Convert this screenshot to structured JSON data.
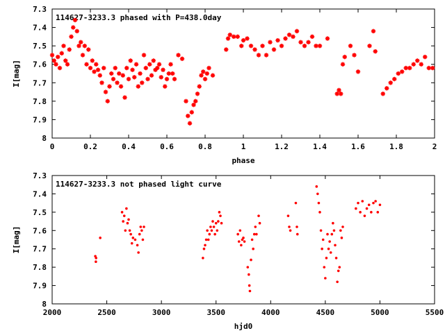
{
  "chart_data": [
    {
      "type": "scatter",
      "title": "114627-3233.3 phased with P=438.0day",
      "xlabel": "phase",
      "ylabel": "I[mag]",
      "xlim": [
        0,
        2
      ],
      "ylim": [
        7.3,
        8
      ],
      "y_inverted": true,
      "x_ticks": [
        "0",
        "0.2",
        "0.4",
        "0.6",
        "0.8",
        "1",
        "1.2",
        "1.4",
        "1.6",
        "1.8",
        "2"
      ],
      "y_ticks": [
        "7.3",
        "7.4",
        "7.5",
        "7.6",
        "7.7",
        "7.8",
        "7.9",
        "8"
      ],
      "marker_color": "#ff0000",
      "marker": "star",
      "series": [
        {
          "x": [
            0.0,
            0.01,
            0.02,
            0.03,
            0.04,
            0.05,
            0.06,
            0.07,
            0.08,
            0.09,
            0.1,
            0.11,
            0.12,
            0.13,
            0.14,
            0.15,
            0.16,
            0.17,
            0.18,
            0.19,
            0.2,
            0.21,
            0.22,
            0.23,
            0.24,
            0.25,
            0.26,
            0.27,
            0.28,
            0.29,
            0.3,
            0.31,
            0.32,
            0.33,
            0.34,
            0.35,
            0.36,
            0.37,
            0.38,
            0.39,
            0.4,
            0.41,
            0.42,
            0.43,
            0.44,
            0.45,
            0.46,
            0.47,
            0.48,
            0.49,
            0.5,
            0.51,
            0.52,
            0.53,
            0.54,
            0.55,
            0.56,
            0.57,
            0.58,
            0.59,
            0.6,
            0.61,
            0.62,
            0.63,
            0.64,
            0.66,
            0.68,
            0.7,
            0.71,
            0.72,
            0.73,
            0.74,
            0.75,
            0.76,
            0.77,
            0.78,
            0.79,
            0.8,
            0.81,
            0.82,
            0.84,
            0.91,
            0.92,
            0.93,
            0.95,
            0.97,
            0.99,
            1.0,
            1.02,
            1.04,
            1.06,
            1.08,
            1.1,
            1.12,
            1.14,
            1.16,
            1.18,
            1.2,
            1.22,
            1.24,
            1.26,
            1.28,
            1.3,
            1.32,
            1.34,
            1.36,
            1.38,
            1.4,
            1.44,
            1.49,
            1.5,
            1.51,
            1.52,
            1.53,
            1.56,
            1.58,
            1.6,
            1.66,
            1.68,
            1.69,
            1.73,
            1.75,
            1.77,
            1.79,
            1.81,
            1.83,
            1.85,
            1.87,
            1.89,
            1.91,
            1.93,
            1.95,
            1.97,
            1.99
          ],
          "y": [
            7.55,
            7.58,
            7.6,
            7.56,
            7.62,
            7.54,
            7.5,
            7.58,
            7.6,
            7.52,
            7.45,
            7.4,
            7.36,
            7.42,
            7.5,
            7.48,
            7.55,
            7.5,
            7.6,
            7.52,
            7.62,
            7.58,
            7.64,
            7.6,
            7.63,
            7.66,
            7.7,
            7.62,
            7.75,
            7.8,
            7.72,
            7.65,
            7.68,
            7.62,
            7.7,
            7.65,
            7.72,
            7.66,
            7.78,
            7.62,
            7.68,
            7.58,
            7.63,
            7.67,
            7.6,
            7.72,
            7.65,
            7.7,
            7.55,
            7.62,
            7.68,
            7.6,
            7.66,
            7.58,
            7.63,
            7.62,
            7.6,
            7.67,
            7.63,
            7.72,
            7.68,
            7.65,
            7.6,
            7.65,
            7.68,
            7.55,
            7.57,
            7.8,
            7.88,
            7.92,
            7.86,
            7.82,
            7.8,
            7.76,
            7.72,
            7.66,
            7.64,
            7.68,
            7.65,
            7.62,
            7.66,
            7.52,
            7.46,
            7.44,
            7.45,
            7.45,
            7.5,
            7.47,
            7.46,
            7.5,
            7.52,
            7.55,
            7.5,
            7.55,
            7.48,
            7.52,
            7.47,
            7.5,
            7.46,
            7.44,
            7.45,
            7.42,
            7.48,
            7.5,
            7.48,
            7.45,
            7.5,
            7.5,
            7.46,
            7.76,
            7.74,
            7.76,
            7.6,
            7.56,
            7.5,
            7.55,
            7.64,
            7.5,
            7.42,
            7.53,
            7.76,
            7.73,
            7.7,
            7.68,
            7.65,
            7.64,
            7.62,
            7.62,
            7.6,
            7.58,
            7.6,
            7.56,
            7.62,
            7.62
          ]
        }
      ]
    },
    {
      "type": "scatter",
      "title": "114627-3233.3 not phased light curve",
      "xlabel": "hjd0",
      "ylabel": "I[mag]",
      "xlim": [
        2000,
        5500
      ],
      "ylim": [
        7.3,
        8
      ],
      "y_inverted": true,
      "x_ticks": [
        "2000",
        "2500",
        "3000",
        "3500",
        "4000",
        "4500",
        "5000",
        "5500"
      ],
      "y_ticks": [
        "7.3",
        "7.4",
        "7.5",
        "7.6",
        "7.7",
        "7.8",
        "7.9",
        "8"
      ],
      "marker_color": "#ff0000",
      "marker": "dot",
      "series": [
        {
          "x": [
            2395,
            2400,
            2402,
            2440,
            2640,
            2650,
            2660,
            2670,
            2680,
            2690,
            2700,
            2710,
            2720,
            2730,
            2740,
            2760,
            2780,
            2790,
            2800,
            2810,
            2820,
            2830,
            2840,
            3380,
            3390,
            3400,
            3410,
            3420,
            3430,
            3440,
            3450,
            3460,
            3470,
            3480,
            3490,
            3500,
            3510,
            3520,
            3530,
            3540,
            3550,
            3700,
            3710,
            3720,
            3730,
            3740,
            3750,
            3760,
            3790,
            3800,
            3805,
            3810,
            3820,
            3830,
            3840,
            3850,
            3860,
            3870,
            3890,
            3900,
            4160,
            4170,
            4180,
            4230,
            4240,
            4245,
            4420,
            4430,
            4440,
            4450,
            4460,
            4470,
            4480,
            4490,
            4500,
            4510,
            4520,
            4530,
            4540,
            4550,
            4560,
            4570,
            4580,
            4590,
            4600,
            4610,
            4620,
            4630,
            4640,
            4650,
            4660,
            4780,
            4800,
            4820,
            4840,
            4860,
            4880,
            4900,
            4920,
            4940,
            4960,
            4980,
            5000
          ],
          "y": [
            7.74,
            7.77,
            7.75,
            7.64,
            7.5,
            7.55,
            7.52,
            7.6,
            7.48,
            7.56,
            7.54,
            7.6,
            7.62,
            7.67,
            7.64,
            7.65,
            7.68,
            7.72,
            7.62,
            7.58,
            7.6,
            7.65,
            7.58,
            7.75,
            7.7,
            7.68,
            7.65,
            7.6,
            7.65,
            7.62,
            7.58,
            7.6,
            7.55,
            7.58,
            7.62,
            7.56,
            7.6,
            7.55,
            7.5,
            7.52,
            7.56,
            7.62,
            7.66,
            7.6,
            7.68,
            7.65,
            7.64,
            7.66,
            7.8,
            7.84,
            7.9,
            7.93,
            7.76,
            7.65,
            7.7,
            7.62,
            7.58,
            7.62,
            7.52,
            7.56,
            7.52,
            7.58,
            7.6,
            7.45,
            7.58,
            7.62,
            7.36,
            7.4,
            7.45,
            7.5,
            7.6,
            7.7,
            7.65,
            7.8,
            7.86,
            7.75,
            7.62,
            7.7,
            7.66,
            7.72,
            7.62,
            7.56,
            7.6,
            7.68,
            7.75,
            7.88,
            7.82,
            7.8,
            7.6,
            7.64,
            7.58,
            7.48,
            7.45,
            7.5,
            7.44,
            7.52,
            7.48,
            7.46,
            7.5,
            7.45,
            7.44,
            7.5,
            7.46
          ]
        }
      ]
    }
  ]
}
